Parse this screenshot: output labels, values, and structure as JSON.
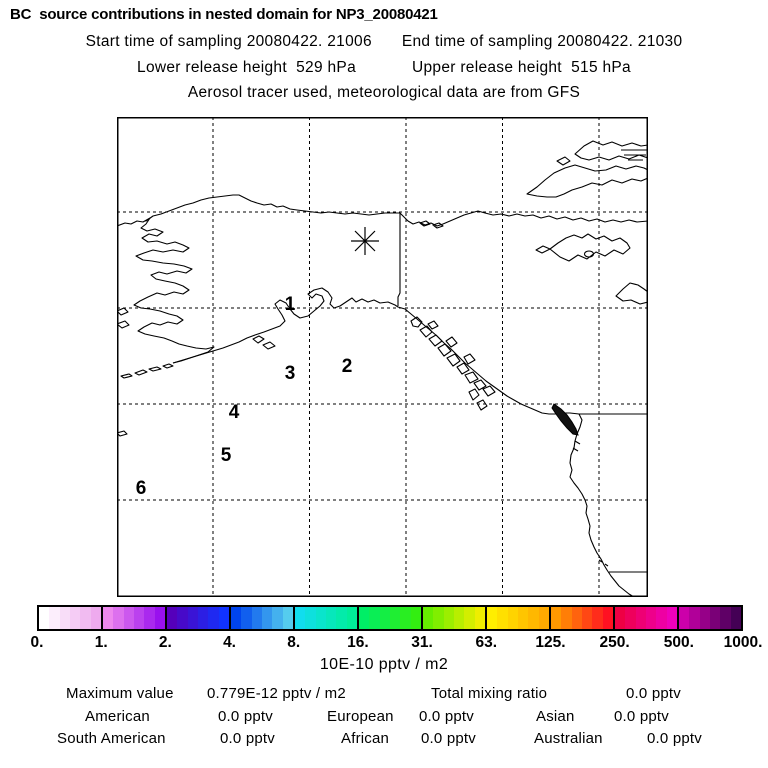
{
  "header": {
    "title": "BC  source contributions in nested domain for NP3_20080421",
    "start_time": "Start time of sampling 20080422. 21006",
    "end_time": "End time of sampling 20080422. 21030",
    "lower_release": "Lower release height  529 hPa",
    "upper_release": "Upper release height  515 hPa",
    "tracer_info": "Aerosol tracer used, meteorological data are from GFS"
  },
  "map": {
    "release_marker": "asterisk",
    "trajectory_labels": [
      "1",
      "2",
      "3",
      "4",
      "5",
      "6"
    ],
    "line_color": "#000000",
    "background": "#ffffff"
  },
  "colorbar": {
    "tick_labels": [
      "0.",
      "1.",
      "2.",
      "4.",
      "8.",
      "16.",
      "31.",
      "63.",
      "125.",
      "250.",
      "500.",
      "1000."
    ],
    "units_caption": "10E-10 pptv / m2",
    "steps_per_segment": 6,
    "segments": [
      {
        "from": "#ffffff",
        "to": "#eeaaee"
      },
      {
        "from": "#ee88ee",
        "to": "#9911ee"
      },
      {
        "from": "#5500bb",
        "to": "#1133ff"
      },
      {
        "from": "#0044ee",
        "to": "#55ccee"
      },
      {
        "from": "#11ddee",
        "to": "#00ee99"
      },
      {
        "from": "#00ee66",
        "to": "#33ee11"
      },
      {
        "from": "#66ee00",
        "to": "#eeee00"
      },
      {
        "from": "#ffee00",
        "to": "#ffaa00"
      },
      {
        "from": "#ff9900",
        "to": "#ff1122"
      },
      {
        "from": "#ee0044",
        "to": "#ee00bb"
      },
      {
        "from": "#cc00aa",
        "to": "#440055"
      }
    ]
  },
  "footer": {
    "max_label": "Maximum value",
    "max_value": "0.779E-12 pptv / m2",
    "total_label": "Total mixing ratio",
    "total_value": "0.0 pptv",
    "regions": [
      {
        "label": "American",
        "value": "0.0 pptv"
      },
      {
        "label": "European",
        "value": "0.0 pptv"
      },
      {
        "label": "Asian",
        "value": "0.0 pptv"
      },
      {
        "label": "South American",
        "value": "0.0 pptv"
      },
      {
        "label": "African",
        "value": "0.0 pptv"
      },
      {
        "label": "Australian",
        "value": "0.0 pptv"
      }
    ]
  },
  "chart_data": {
    "type": "heatmap",
    "title": "BC  source contributions in nested domain for NP3_20080421",
    "subtitle": [
      "Start time of sampling 20080422. 21006",
      "End time of sampling 20080422. 21030",
      "Lower release height  529 hPa",
      "Upper release height  515 hPa",
      "Aerosol tracer used, meteorological data are from GFS"
    ],
    "map_region": "Alaska, northeast Pacific and northwest Canada coastlines with dashed lat-lon gridlines",
    "colorbar_tick_values": [
      0,
      1,
      2,
      4,
      8,
      16,
      31,
      63,
      125,
      250,
      500,
      1000
    ],
    "colorbar_units": "10E-10 pptv / m2",
    "filled_contours_visible": false,
    "release_marker": "asterisk in upper-center of domain",
    "trajectory_point_labels": [
      "1",
      "2",
      "3",
      "4",
      "5",
      "6"
    ],
    "maximum_value": "0.779E-12 pptv / m2",
    "total_mixing_ratio": "0.0 pptv",
    "regional_mixing_ratios": {
      "American": "0.0 pptv",
      "European": "0.0 pptv",
      "Asian": "0.0 pptv",
      "South American": "0.0 pptv",
      "African": "0.0 pptv",
      "Australian": "0.0 pptv"
    }
  }
}
